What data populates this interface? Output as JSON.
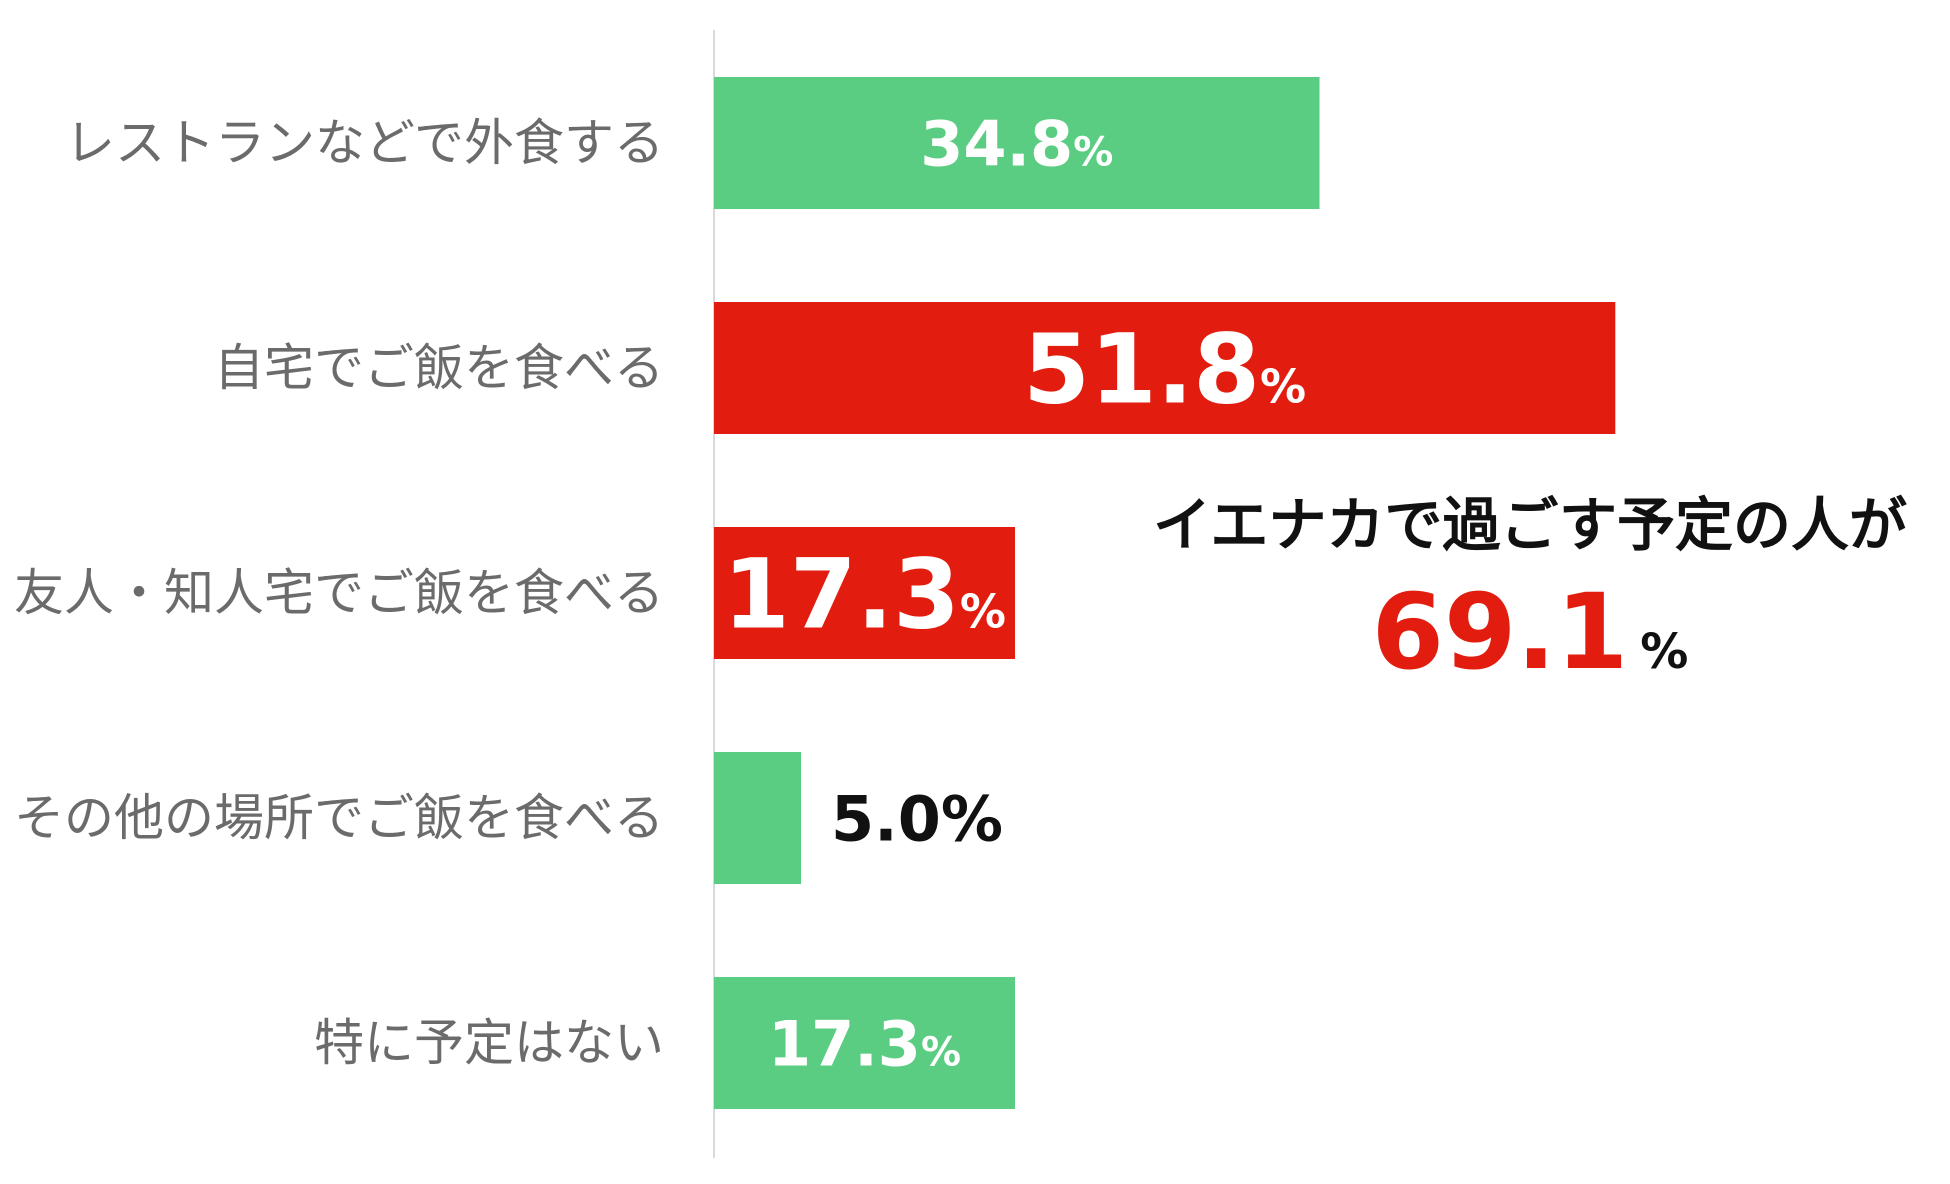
{
  "chart_data": {
    "type": "bar",
    "orientation": "horizontal",
    "categories": [
      "レストランなどで外食する",
      "自宅でご飯を食べる",
      "友人・知人宅でご飯を食べる",
      "その他の場所でご飯を食べる",
      "特に予定はない"
    ],
    "values": [
      34.8,
      51.8,
      17.3,
      5.0,
      17.3
    ],
    "data_labels": [
      "34.8",
      "51.8",
      "17.3",
      "5.0",
      "17.3"
    ],
    "unit": "%",
    "highlighted": [
      false,
      true,
      true,
      false,
      false
    ],
    "xlim": [
      0,
      100
    ],
    "grid": false,
    "legend": "none",
    "colors": {
      "default": "#5bcd82",
      "highlight": "#e21d0f",
      "label_inside": "#ffffff",
      "label_outside": "#111111",
      "category_text": "#6b6b6b",
      "axis": "#d9d9d9"
    },
    "callout": {
      "title": "イエナカで過ごす予定の人が",
      "value": "69.1",
      "unit": "%",
      "value_color": "#e21d0f"
    }
  }
}
